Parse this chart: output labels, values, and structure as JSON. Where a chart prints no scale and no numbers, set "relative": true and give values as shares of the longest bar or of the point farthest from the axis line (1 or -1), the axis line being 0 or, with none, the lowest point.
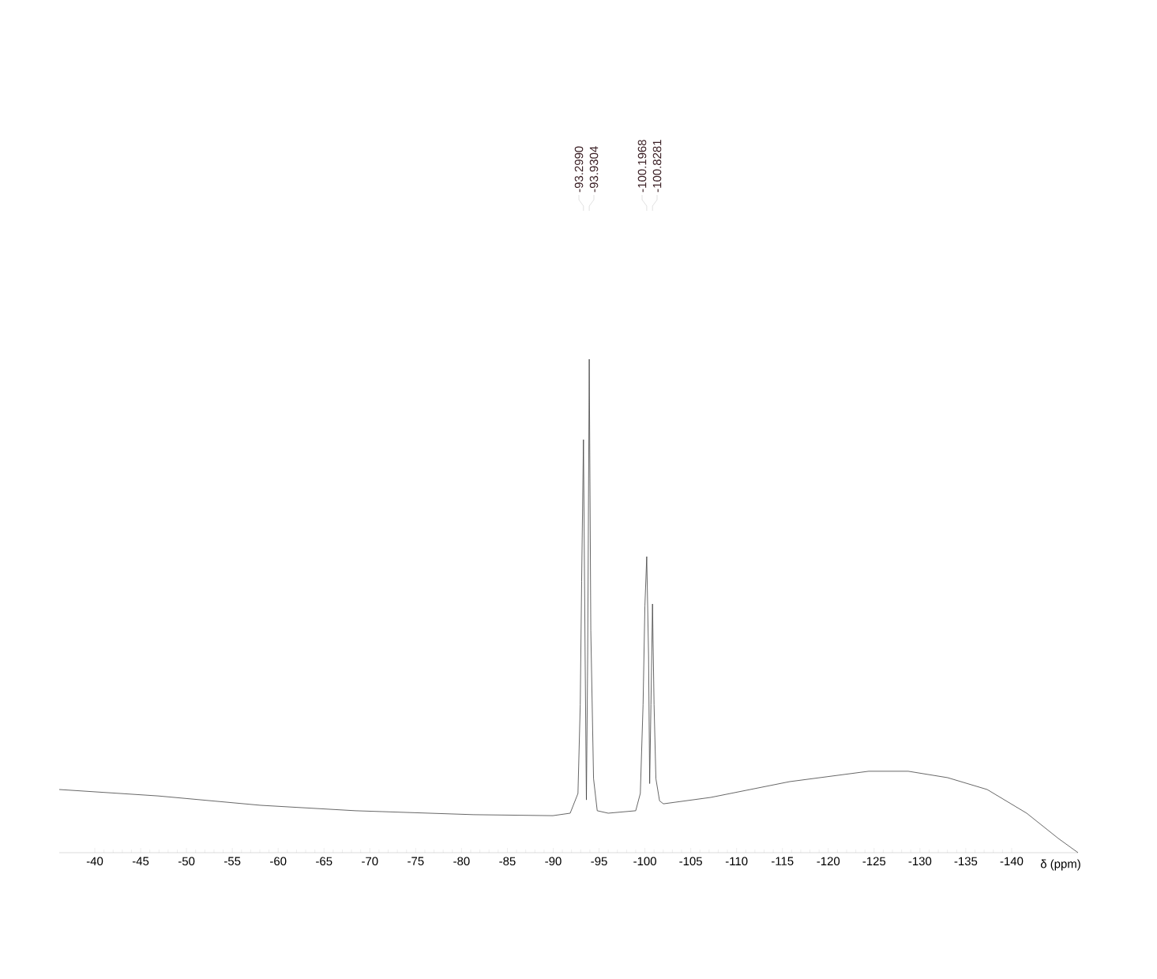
{
  "chart_data": {
    "type": "line",
    "relative": true,
    "xlabel": "δ (ppm)",
    "xlim": [
      -36.12,
      -147.24
    ],
    "xticks": [
      -40,
      -45,
      -50,
      -55,
      -60,
      -65,
      -70,
      -75,
      -80,
      -85,
      -90,
      -95,
      -100,
      -105,
      -110,
      -115,
      -120,
      -125,
      -130,
      -135,
      -140
    ],
    "annotations": [
      {
        "text": "-93.2990",
        "x": -93.299
      },
      {
        "text": "-93.9304",
        "x": -93.9304
      },
      {
        "text": "-100.1968",
        "x": -100.1968
      },
      {
        "text": "-100.8281",
        "x": -100.8281
      }
    ],
    "series": [
      {
        "color": "#404040",
        "x": [
          -36.12,
          -46.89,
          -58.09,
          -68.42,
          -81.34,
          -89.96,
          -91.85,
          -92.7,
          -92.95,
          -93.1,
          -93.3,
          -93.48,
          -93.62,
          -93.76,
          -93.93,
          -94.1,
          -94.4,
          -94.8,
          -96.0,
          -99.0,
          -99.5,
          -99.8,
          -100.0,
          -100.2,
          -100.4,
          -100.52,
          -100.66,
          -100.83,
          -101.0,
          -101.2,
          -101.6,
          -102.02,
          -107.18,
          -115.8,
          -124.41,
          -128.72,
          -133.02,
          -137.33,
          -141.64,
          -145.08,
          -147.24
        ],
        "values": [
          0.128,
          0.115,
          0.096,
          0.085,
          0.077,
          0.075,
          0.08,
          0.12,
          0.3,
          0.55,
          0.837,
          0.4,
          0.107,
          0.4,
          1.0,
          0.45,
          0.15,
          0.085,
          0.08,
          0.085,
          0.12,
          0.3,
          0.5,
          0.6,
          0.4,
          0.14,
          0.3,
          0.504,
          0.3,
          0.15,
          0.105,
          0.099,
          0.112,
          0.144,
          0.165,
          0.165,
          0.152,
          0.128,
          0.08,
          0.029,
          0.0
        ]
      }
    ]
  }
}
